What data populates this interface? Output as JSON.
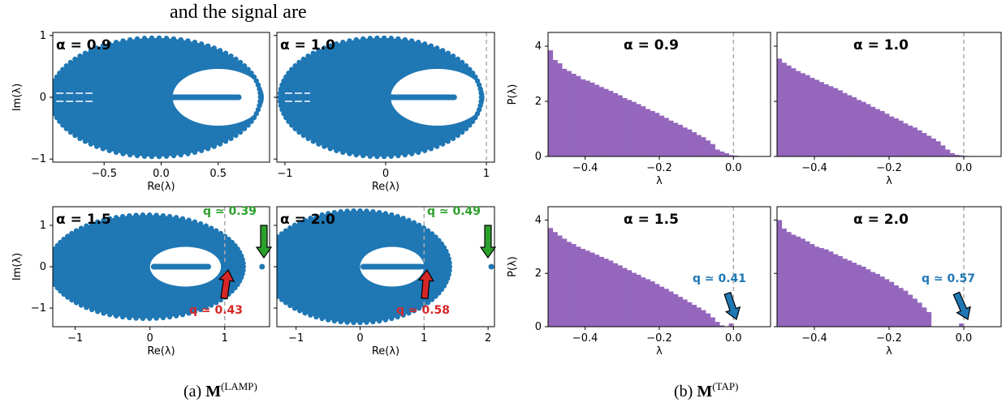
{
  "header_text": "and the signal are",
  "captions": {
    "a": {
      "prefix": "(a) ",
      "symbol": "M",
      "superscript": "(LAMP)"
    },
    "b": {
      "prefix": "(b) ",
      "symbol": "M",
      "superscript": "(TAP)"
    }
  },
  "colors": {
    "scatter": "#1f77b4",
    "hist": "#9467bd",
    "red": "#d62728",
    "green": "#2ca02c",
    "blue": "#1f77b4",
    "dashed": "#aaaaaa"
  },
  "chart_data": [
    {
      "panel": "a",
      "type": "scatter",
      "title": "α = 0.9",
      "xlabel": "Re(λ)",
      "ylabel": "Im(λ)",
      "xlim": [
        -0.95,
        0.95
      ],
      "ylim": [
        -1.05,
        1.05
      ],
      "xticks": [
        -0.5,
        0.0,
        0.5
      ],
      "xtick_labels": [
        "−0.5",
        "0.0",
        "0.5"
      ],
      "yticks": [
        -1,
        0,
        1
      ],
      "ytick_labels": [
        "−1",
        "0",
        "1"
      ],
      "bulk": {
        "cx": -0.05,
        "rx": 0.92,
        "ry": 0.96,
        "hole_left": 0.1,
        "hole_right": 0.9,
        "hole_halfheight": 0.46,
        "real_segment": [
          0.05,
          0.68
        ],
        "left_segment": [
          -0.92,
          -0.6
        ]
      },
      "outlier": null,
      "dashed_x": null
    },
    {
      "panel": "a",
      "type": "scatter",
      "title": "α = 1.0",
      "xlabel": "Re(λ)",
      "ylabel": "",
      "xlim": [
        -1.08,
        1.08
      ],
      "ylim": [
        -1.05,
        1.05
      ],
      "xticks": [
        -1,
        0,
        1
      ],
      "xtick_labels": [
        "−1",
        "0",
        "1"
      ],
      "yticks": [],
      "ytick_labels": [],
      "bulk": {
        "cx": -0.05,
        "rx": 1.0,
        "ry": 0.96,
        "hole_left": 0.05,
        "hole_right": 0.98,
        "hole_halfheight": 0.46,
        "real_segment": [
          0.05,
          0.68
        ],
        "left_segment": [
          -1.0,
          -0.75
        ]
      },
      "outlier": null,
      "dashed_x": 1.0
    },
    {
      "panel": "a",
      "type": "scatter",
      "title": "α = 1.5",
      "xlabel": "Re(λ)",
      "ylabel": "Im(λ)",
      "xlim": [
        -1.3,
        1.6
      ],
      "ylim": [
        -1.45,
        1.45
      ],
      "xticks": [
        -1,
        0,
        1
      ],
      "xtick_labels": [
        "−1",
        "0",
        "1"
      ],
      "yticks": [
        -1,
        0,
        1
      ],
      "ytick_labels": [
        "−1",
        "0",
        "1"
      ],
      "bulk": {
        "cx": -0.05,
        "rx": 1.3,
        "ry": 1.25,
        "hole_left": 0.0,
        "hole_right": 0.95,
        "hole_halfheight": 0.48,
        "real_segment": [
          0.05,
          0.78
        ],
        "left_segment": null
      },
      "outlier": {
        "x": 1.5,
        "y": 0.0
      },
      "extra_point": {
        "x": 1.02,
        "y": 0.0
      },
      "dashed_x": 1.0,
      "annotations": [
        {
          "text": "q ≃ 0.39",
          "color": "green"
        },
        {
          "text": "q ≃ 0.43",
          "color": "red"
        }
      ]
    },
    {
      "panel": "a",
      "type": "scatter",
      "title": "α = 2.0",
      "xlabel": "Re(λ)",
      "ylabel": "",
      "xlim": [
        -1.3,
        2.1
      ],
      "ylim": [
        -1.45,
        1.45
      ],
      "xticks": [
        -1,
        0,
        1,
        2
      ],
      "xtick_labels": [
        "−1",
        "0",
        "1",
        "2"
      ],
      "yticks": [],
      "ytick_labels": [],
      "bulk": {
        "cx": -0.05,
        "rx": 1.45,
        "ry": 1.35,
        "hole_left": 0.0,
        "hole_right": 1.0,
        "hole_halfheight": 0.48,
        "real_segment": [
          0.05,
          0.95
        ],
        "left_segment": null
      },
      "outlier": {
        "x": 2.05,
        "y": 0.0
      },
      "extra_point": {
        "x": 1.0,
        "y": 0.0
      },
      "dashed_x": 1.0,
      "annotations": [
        {
          "text": "q ≃ 0.49",
          "color": "green"
        },
        {
          "text": "q ≃ 0.58",
          "color": "red"
        }
      ]
    },
    {
      "panel": "b",
      "type": "bar",
      "title": "α = 0.9",
      "xlabel": "λ",
      "ylabel": "P(λ)",
      "xlim": [
        -0.5,
        0.1
      ],
      "ylim": [
        0,
        4.5
      ],
      "xticks": [
        -0.4,
        -0.2,
        0.0
      ],
      "xtick_labels": [
        "−0.4",
        "−0.2",
        "0.0"
      ],
      "yticks": [
        0,
        2,
        4
      ],
      "ytick_labels": [
        "0",
        "2",
        "4"
      ],
      "bin_width": 0.0125,
      "bin_start": -0.5,
      "values": [
        3.85,
        3.5,
        3.38,
        3.18,
        3.1,
        3.0,
        2.92,
        2.8,
        2.75,
        2.68,
        2.6,
        2.52,
        2.45,
        2.38,
        2.3,
        2.22,
        2.12,
        2.05,
        1.98,
        1.9,
        1.82,
        1.72,
        1.65,
        1.58,
        1.48,
        1.4,
        1.3,
        1.22,
        1.15,
        1.05,
        0.98,
        0.88,
        0.78,
        0.7,
        0.58,
        0.45,
        0.25,
        0.18,
        0.12,
        0.05,
        0.03
      ],
      "dashed_x": 0.0,
      "annotations": []
    },
    {
      "panel": "b",
      "type": "bar",
      "title": "α = 1.0",
      "xlabel": "λ",
      "ylabel": "",
      "xlim": [
        -0.5,
        0.1
      ],
      "ylim": [
        0,
        4.5
      ],
      "xticks": [
        -0.4,
        -0.2,
        0.0
      ],
      "xtick_labels": [
        "−0.4",
        "−0.2",
        "0.0"
      ],
      "yticks": [],
      "ytick_labels": [],
      "bin_width": 0.0125,
      "bin_start": -0.5,
      "values": [
        3.55,
        3.4,
        3.3,
        3.2,
        3.1,
        3.02,
        2.95,
        2.85,
        2.78,
        2.7,
        2.62,
        2.55,
        2.48,
        2.4,
        2.3,
        2.22,
        2.15,
        2.05,
        1.98,
        1.9,
        1.8,
        1.72,
        1.65,
        1.55,
        1.45,
        1.38,
        1.3,
        1.2,
        1.12,
        1.05,
        0.95,
        0.85,
        0.75,
        0.65,
        0.55,
        0.4,
        0.25,
        0.12,
        0.06,
        0.04,
        0.02
      ],
      "dashed_x": 0.0,
      "annotations": []
    },
    {
      "panel": "b",
      "type": "bar",
      "title": "α = 1.5",
      "xlabel": "λ",
      "ylabel": "P(λ)",
      "xlim": [
        -0.5,
        0.1
      ],
      "ylim": [
        0,
        4.5
      ],
      "xticks": [
        -0.4,
        -0.2,
        0.0
      ],
      "xtick_labels": [
        "−0.4",
        "−0.2",
        "0.0"
      ],
      "yticks": [
        0,
        2,
        4
      ],
      "ytick_labels": [
        "0",
        "2",
        "4"
      ],
      "bin_width": 0.0125,
      "bin_start": -0.5,
      "values": [
        3.7,
        3.55,
        3.42,
        3.3,
        3.18,
        3.1,
        3.0,
        2.92,
        2.85,
        2.78,
        2.7,
        2.62,
        2.55,
        2.48,
        2.38,
        2.3,
        2.2,
        2.12,
        2.02,
        1.95,
        1.85,
        1.78,
        1.7,
        1.6,
        1.5,
        1.42,
        1.32,
        1.22,
        1.12,
        1.02,
        0.92,
        0.82,
        0.72,
        0.62,
        0.5,
        0.35,
        0.18,
        0.05,
        0.0,
        0.12,
        0.0
      ],
      "dashed_x": 0.0,
      "annotations": [
        {
          "text": "q ≃  0.41",
          "color": "blue"
        }
      ]
    },
    {
      "panel": "b",
      "type": "bar",
      "title": "α = 2.0",
      "xlabel": "λ",
      "ylabel": "",
      "xlim": [
        -0.5,
        0.1
      ],
      "ylim": [
        0,
        4.5
      ],
      "xticks": [
        -0.4,
        -0.2,
        0.0
      ],
      "xtick_labels": [
        "−0.4",
        "−0.2",
        "0.0"
      ],
      "yticks": [],
      "ytick_labels": [],
      "bin_width": 0.0125,
      "bin_start": -0.5,
      "values": [
        4.0,
        3.68,
        3.55,
        3.45,
        3.38,
        3.3,
        3.2,
        3.1,
        3.0,
        2.95,
        2.9,
        2.82,
        2.72,
        2.65,
        2.55,
        2.48,
        2.4,
        2.32,
        2.25,
        2.15,
        2.05,
        1.98,
        1.88,
        1.78,
        1.68,
        1.55,
        1.45,
        1.35,
        1.2,
        1.05,
        0.9,
        0.72,
        0.55,
        0.0,
        0.0,
        0.0,
        0.0,
        0.0,
        0.0,
        0.12,
        0.0
      ],
      "dashed_x": 0.0,
      "annotations": [
        {
          "text": "q ≃  0.57",
          "color": "blue"
        }
      ]
    }
  ]
}
